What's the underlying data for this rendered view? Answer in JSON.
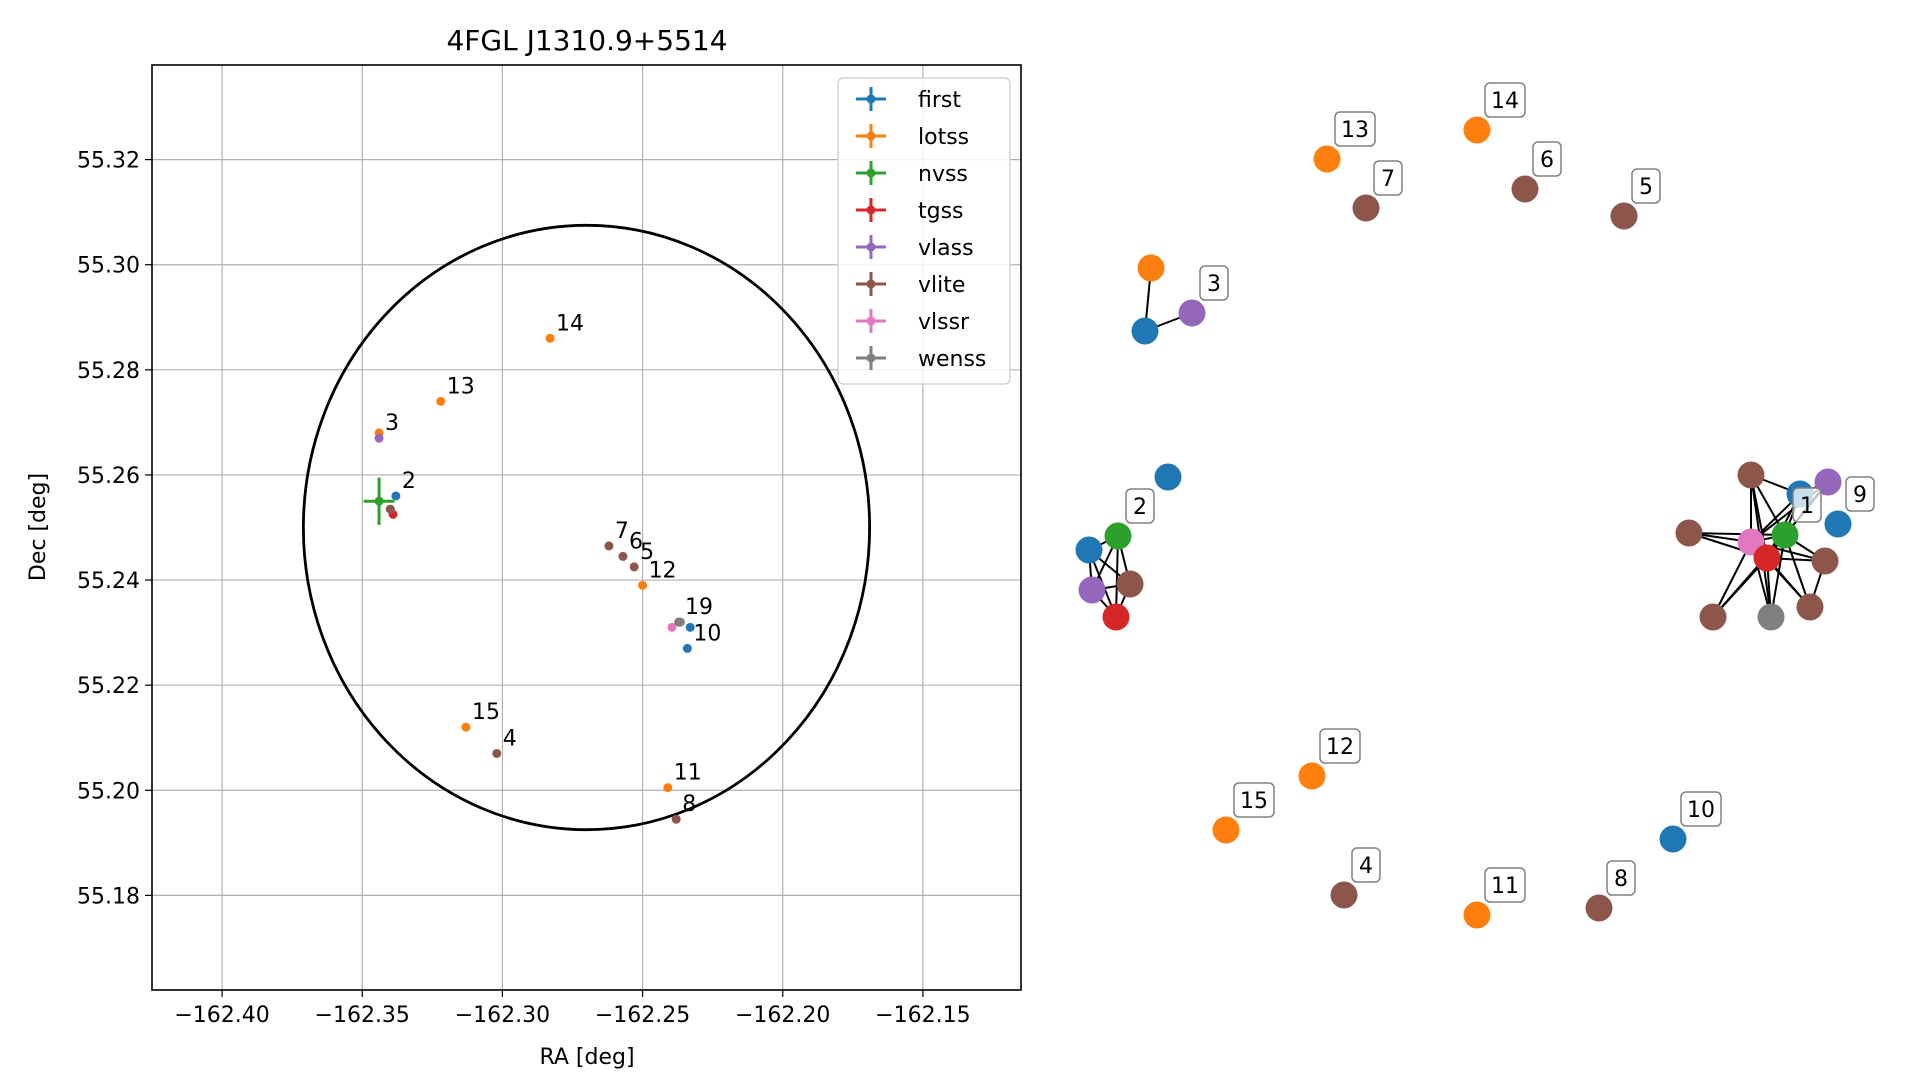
{
  "chart_data": [
    {
      "type": "scatter",
      "title": "4FGL J1310.9+5514",
      "xlabel": "RA [deg]",
      "ylabel": "Dec [deg]",
      "xlim": [
        -162.425,
        -162.115
      ],
      "ylim": [
        55.162,
        55.338
      ],
      "xticks": [
        -162.4,
        -162.35,
        -162.3,
        -162.25,
        -162.2,
        -162.15
      ],
      "xtick_labels": [
        "−162.40",
        "−162.35",
        "−162.30",
        "−162.25",
        "−162.20",
        "−162.15"
      ],
      "yticks": [
        55.18,
        55.2,
        55.22,
        55.24,
        55.26,
        55.28,
        55.3,
        55.32
      ],
      "ytick_labels": [
        "55.18",
        "55.20",
        "55.22",
        "55.24",
        "55.26",
        "55.28",
        "55.30",
        "55.32"
      ],
      "grid": true,
      "legend_position": "top-right",
      "circle": {
        "center_ra": -162.27,
        "center_dec": 55.25,
        "radius_ra": 0.101,
        "radius_dec": 0.0575,
        "color": "#000000"
      },
      "series": [
        {
          "name": "first",
          "color": "#1f77b4",
          "points": [
            {
              "ra": -162.338,
              "dec": 55.256
            },
            {
              "ra": -162.233,
              "dec": 55.231
            },
            {
              "ra": -162.234,
              "dec": 55.227
            }
          ]
        },
        {
          "name": "lotss",
          "color": "#ff7f0e",
          "points": [
            {
              "ra": -162.283,
              "dec": 55.286
            },
            {
              "ra": -162.322,
              "dec": 55.274
            },
            {
              "ra": -162.344,
              "dec": 55.268
            },
            {
              "ra": -162.25,
              "dec": 55.239
            },
            {
              "ra": -162.313,
              "dec": 55.212
            },
            {
              "ra": -162.241,
              "dec": 55.2005
            }
          ]
        },
        {
          "name": "nvss",
          "color": "#2ca02c",
          "points": [
            {
              "ra": -162.344,
              "dec": 55.255,
              "xerr": 0.0055,
              "yerr": 0.0045
            }
          ]
        },
        {
          "name": "tgss",
          "color": "#d62728",
          "points": [
            {
              "ra": -162.339,
              "dec": 55.2525
            }
          ]
        },
        {
          "name": "vlass",
          "color": "#9467bd",
          "points": [
            {
              "ra": -162.344,
              "dec": 55.267
            }
          ]
        },
        {
          "name": "vlite",
          "color": "#8c564b",
          "points": [
            {
              "ra": -162.34,
              "dec": 55.2535
            },
            {
              "ra": -162.262,
              "dec": 55.2465
            },
            {
              "ra": -162.257,
              "dec": 55.2445
            },
            {
              "ra": -162.253,
              "dec": 55.2425
            },
            {
              "ra": -162.237,
              "dec": 55.232
            },
            {
              "ra": -162.302,
              "dec": 55.207
            },
            {
              "ra": -162.238,
              "dec": 55.1945
            }
          ]
        },
        {
          "name": "vlssr",
          "color": "#e377c2",
          "points": [
            {
              "ra": -162.2395,
              "dec": 55.231
            }
          ]
        },
        {
          "name": "wenss",
          "color": "#7f7f7f",
          "points": [
            {
              "ra": -162.2365,
              "dec": 55.232
            }
          ]
        }
      ],
      "annotations": [
        {
          "text": "14",
          "ra": -162.283,
          "dec": 55.286
        },
        {
          "text": "13",
          "ra": -162.322,
          "dec": 55.274
        },
        {
          "text": "3",
          "ra": -162.344,
          "dec": 55.267
        },
        {
          "text": "2",
          "ra": -162.338,
          "dec": 55.256
        },
        {
          "text": "7",
          "ra": -162.262,
          "dec": 55.2465
        },
        {
          "text": "6",
          "ra": -162.257,
          "dec": 55.2445
        },
        {
          "text": "5",
          "ra": -162.253,
          "dec": 55.2425
        },
        {
          "text": "12",
          "ra": -162.25,
          "dec": 55.239
        },
        {
          "text": "19",
          "ra": -162.237,
          "dec": 55.232
        },
        {
          "text": "10",
          "ra": -162.234,
          "dec": 55.227
        },
        {
          "text": "15",
          "ra": -162.313,
          "dec": 55.212
        },
        {
          "text": "4",
          "ra": -162.302,
          "dec": 55.207
        },
        {
          "text": "11",
          "ra": -162.241,
          "dec": 55.2005
        },
        {
          "text": "8",
          "ra": -162.238,
          "dec": 55.1945
        }
      ]
    },
    {
      "type": "network",
      "colors": {
        "first": "#1f77b4",
        "lotss": "#ff7f0e",
        "nvss": "#2ca02c",
        "tgss": "#d62728",
        "vlass": "#9467bd",
        "vlite": "#8c564b",
        "vlssr": "#e377c2",
        "wenss": "#7f7f7f"
      },
      "nodes": [
        {
          "id": "n14",
          "survey": "lotss",
          "label": "14"
        },
        {
          "id": "n13",
          "survey": "lotss",
          "label": "13"
        },
        {
          "id": "n6",
          "survey": "vlite",
          "label": "6"
        },
        {
          "id": "n7",
          "survey": "vlite",
          "label": "7"
        },
        {
          "id": "n5",
          "survey": "vlite",
          "label": "5"
        },
        {
          "id": "g3o",
          "survey": "lotss",
          "label": ""
        },
        {
          "id": "g3b",
          "survey": "first",
          "label": ""
        },
        {
          "id": "g3p",
          "survey": "vlass",
          "label": "3"
        },
        {
          "id": "g2b1",
          "survey": "first",
          "label": ""
        },
        {
          "id": "g2b2",
          "survey": "first",
          "label": ""
        },
        {
          "id": "g2g",
          "survey": "nvss",
          "label": "2"
        },
        {
          "id": "g2p",
          "survey": "vlass",
          "label": ""
        },
        {
          "id": "g2br",
          "survey": "vlite",
          "label": ""
        },
        {
          "id": "g2r",
          "survey": "tgss",
          "label": ""
        },
        {
          "id": "g1br1",
          "survey": "vlite",
          "label": ""
        },
        {
          "id": "g1br2",
          "survey": "vlite",
          "label": ""
        },
        {
          "id": "g1br3",
          "survey": "vlite",
          "label": ""
        },
        {
          "id": "g1br4",
          "survey": "vlite",
          "label": ""
        },
        {
          "id": "g1br5",
          "survey": "vlite",
          "label": ""
        },
        {
          "id": "g1b1",
          "survey": "first",
          "label": ""
        },
        {
          "id": "g1p",
          "survey": "vlass",
          "label": ""
        },
        {
          "id": "g1pink",
          "survey": "vlssr",
          "label": ""
        },
        {
          "id": "g1g",
          "survey": "nvss",
          "label": "1"
        },
        {
          "id": "g1r",
          "survey": "tgss",
          "label": ""
        },
        {
          "id": "g1gray",
          "survey": "wenss",
          "label": ""
        },
        {
          "id": "n9",
          "survey": "first",
          "label": "9"
        },
        {
          "id": "n12",
          "survey": "lotss",
          "label": "12"
        },
        {
          "id": "n15",
          "survey": "lotss",
          "label": "15"
        },
        {
          "id": "n10",
          "survey": "first",
          "label": "10"
        },
        {
          "id": "n4",
          "survey": "vlite",
          "label": "4"
        },
        {
          "id": "n11",
          "survey": "lotss",
          "label": "11"
        },
        {
          "id": "n8",
          "survey": "vlite",
          "label": "8"
        }
      ],
      "edges": [
        [
          "g3o",
          "g3b"
        ],
        [
          "g3b",
          "g3p"
        ],
        [
          "g2b2",
          "g2g"
        ],
        [
          "g2b2",
          "g2p"
        ],
        [
          "g2b2",
          "g2br"
        ],
        [
          "g2b2",
          "g2r"
        ],
        [
          "g2g",
          "g2p"
        ],
        [
          "g2g",
          "g2br"
        ],
        [
          "g2g",
          "g2r"
        ],
        [
          "g2p",
          "g2br"
        ],
        [
          "g2p",
          "g2r"
        ],
        [
          "g2br",
          "g2r"
        ],
        [
          "g1pink",
          "g1br1"
        ],
        [
          "g1pink",
          "g1br2"
        ],
        [
          "g1pink",
          "g1br3"
        ],
        [
          "g1pink",
          "g1br4"
        ],
        [
          "g1pink",
          "g1br5"
        ],
        [
          "g1pink",
          "g1b1"
        ],
        [
          "g1pink",
          "g1p"
        ],
        [
          "g1pink",
          "g1g"
        ],
        [
          "g1pink",
          "g1r"
        ],
        [
          "g1pink",
          "g1gray"
        ],
        [
          "g1r",
          "g1br1"
        ],
        [
          "g1r",
          "g1br2"
        ],
        [
          "g1r",
          "g1br3"
        ],
        [
          "g1r",
          "g1br4"
        ],
        [
          "g1r",
          "g1br5"
        ],
        [
          "g1r",
          "g1b1"
        ],
        [
          "g1r",
          "g1p"
        ],
        [
          "g1r",
          "g1g"
        ],
        [
          "g1r",
          "g1gray"
        ],
        [
          "g1g",
          "g1br1"
        ],
        [
          "g1g",
          "g1br2"
        ],
        [
          "g1g",
          "g1br3"
        ],
        [
          "g1g",
          "g1br4"
        ],
        [
          "g1g",
          "g1br5"
        ],
        [
          "g1g",
          "g1b1"
        ],
        [
          "g1g",
          "g1p"
        ],
        [
          "g1g",
          "g1gray"
        ],
        [
          "g1b1",
          "g1br1"
        ],
        [
          "g1b1",
          "g1p"
        ],
        [
          "g1br1",
          "g1gray"
        ],
        [
          "g1br4",
          "g1br5"
        ]
      ]
    }
  ]
}
